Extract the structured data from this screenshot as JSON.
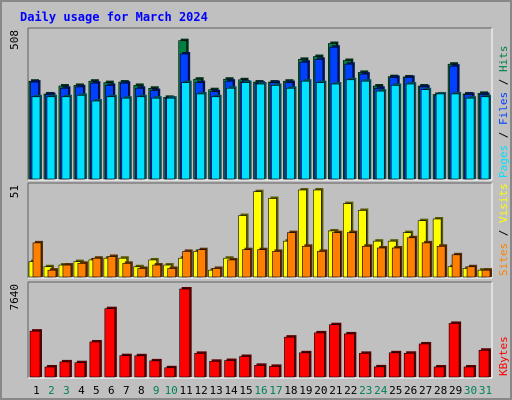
{
  "chart_data": [
    {
      "type": "bar",
      "title": "Daily usage for March 2024",
      "y_max_label": "508",
      "ylim": [
        0,
        508
      ],
      "legend_position": "right",
      "legend": [
        "Pages",
        "Files",
        "Hits"
      ],
      "categories": [
        "1",
        "2",
        "3",
        "4",
        "5",
        "6",
        "7",
        "8",
        "9",
        "10",
        "11",
        "12",
        "13",
        "14",
        "15",
        "16",
        "17",
        "18",
        "19",
        "20",
        "21",
        "22",
        "23",
        "24",
        "25",
        "26",
        "27",
        "28",
        "29",
        "30",
        "31"
      ],
      "weekend_days": [
        "2",
        "3",
        "9",
        "10",
        "16",
        "17",
        "23",
        "24",
        "30",
        "31"
      ],
      "series": [
        {
          "name": "Hits",
          "color": "#008040",
          "values": [
            345,
            300,
            328,
            330,
            345,
            340,
            342,
            330,
            320,
            288,
            488,
            352,
            315,
            352,
            350,
            342,
            342,
            345,
            422,
            432,
            478,
            418,
            376,
            328,
            361,
            360,
            328,
            298,
            405,
            300,
            302
          ]
        },
        {
          "name": "Files",
          "color": "#0040ff",
          "values": [
            342,
            298,
            320,
            325,
            338,
            330,
            338,
            320,
            312,
            285,
            441,
            340,
            308,
            345,
            342,
            338,
            340,
            340,
            412,
            422,
            465,
            405,
            370,
            320,
            358,
            358,
            325,
            295,
            398,
            298,
            298
          ]
        },
        {
          "name": "Pages",
          "color": "#00e0ff",
          "values": [
            290,
            290,
            290,
            295,
            275,
            290,
            285,
            290,
            285,
            285,
            340,
            300,
            290,
            320,
            340,
            335,
            330,
            320,
            345,
            340,
            335,
            350,
            345,
            310,
            330,
            335,
            315,
            300,
            300,
            285,
            290
          ]
        }
      ]
    },
    {
      "type": "bar",
      "y_max_label": "51",
      "ylim": [
        0,
        51
      ],
      "legend_position": "right",
      "legend": [
        "Sites",
        "Visits"
      ],
      "categories": [
        "1",
        "2",
        "3",
        "4",
        "5",
        "6",
        "7",
        "8",
        "9",
        "10",
        "11",
        "12",
        "13",
        "14",
        "15",
        "16",
        "17",
        "18",
        "19",
        "20",
        "21",
        "22",
        "23",
        "24",
        "25",
        "26",
        "27",
        "28",
        "29",
        "30",
        "31"
      ],
      "series": [
        {
          "name": "Visits",
          "color": "#ffff00",
          "values": [
            9,
            6,
            7,
            9,
            10,
            11,
            11,
            6,
            10,
            7,
            11,
            15,
            4,
            11,
            36,
            50,
            46,
            21,
            51,
            51,
            27,
            43,
            39,
            21,
            21,
            26,
            33,
            34,
            6,
            5,
            4
          ]
        },
        {
          "name": "Sites",
          "color": "#ff8000",
          "values": [
            20,
            4,
            7,
            8,
            11,
            12,
            8,
            5,
            7,
            5,
            15,
            16,
            5,
            10,
            16,
            16,
            15,
            26,
            18,
            15,
            26,
            26,
            18,
            17,
            17,
            23,
            20,
            18,
            13,
            6,
            4
          ]
        }
      ]
    },
    {
      "type": "bar",
      "y_max_label": "7640",
      "ylim": [
        0,
        7640
      ],
      "legend_position": "right",
      "legend": [
        "KBytes"
      ],
      "categories": [
        "1",
        "2",
        "3",
        "4",
        "5",
        "6",
        "7",
        "8",
        "9",
        "10",
        "11",
        "12",
        "13",
        "14",
        "15",
        "16",
        "17",
        "18",
        "19",
        "20",
        "21",
        "22",
        "23",
        "24",
        "25",
        "26",
        "27",
        "28",
        "29",
        "30",
        "31"
      ],
      "series": [
        {
          "name": "KBytes",
          "color": "#ff0000",
          "values": [
            3980,
            870,
            1310,
            1240,
            3040,
            5930,
            1850,
            1840,
            1400,
            800,
            7640,
            2050,
            1360,
            1430,
            1780,
            1010,
            920,
            3460,
            2100,
            3830,
            4540,
            3740,
            2050,
            880,
            2100,
            2060,
            2870,
            870,
            4650,
            870,
            2320
          ]
        }
      ]
    }
  ],
  "colors": {
    "background": "#c0c0c0",
    "border": "#888888",
    "title": "#0000ff",
    "weekday_label": "#000000",
    "weekend_label": "#00805c",
    "pages": "#00e0ff",
    "files": "#0040ff",
    "hits": "#008040",
    "sites": "#ff8000",
    "visits": "#ffff00",
    "kbytes": "#ff0000"
  }
}
